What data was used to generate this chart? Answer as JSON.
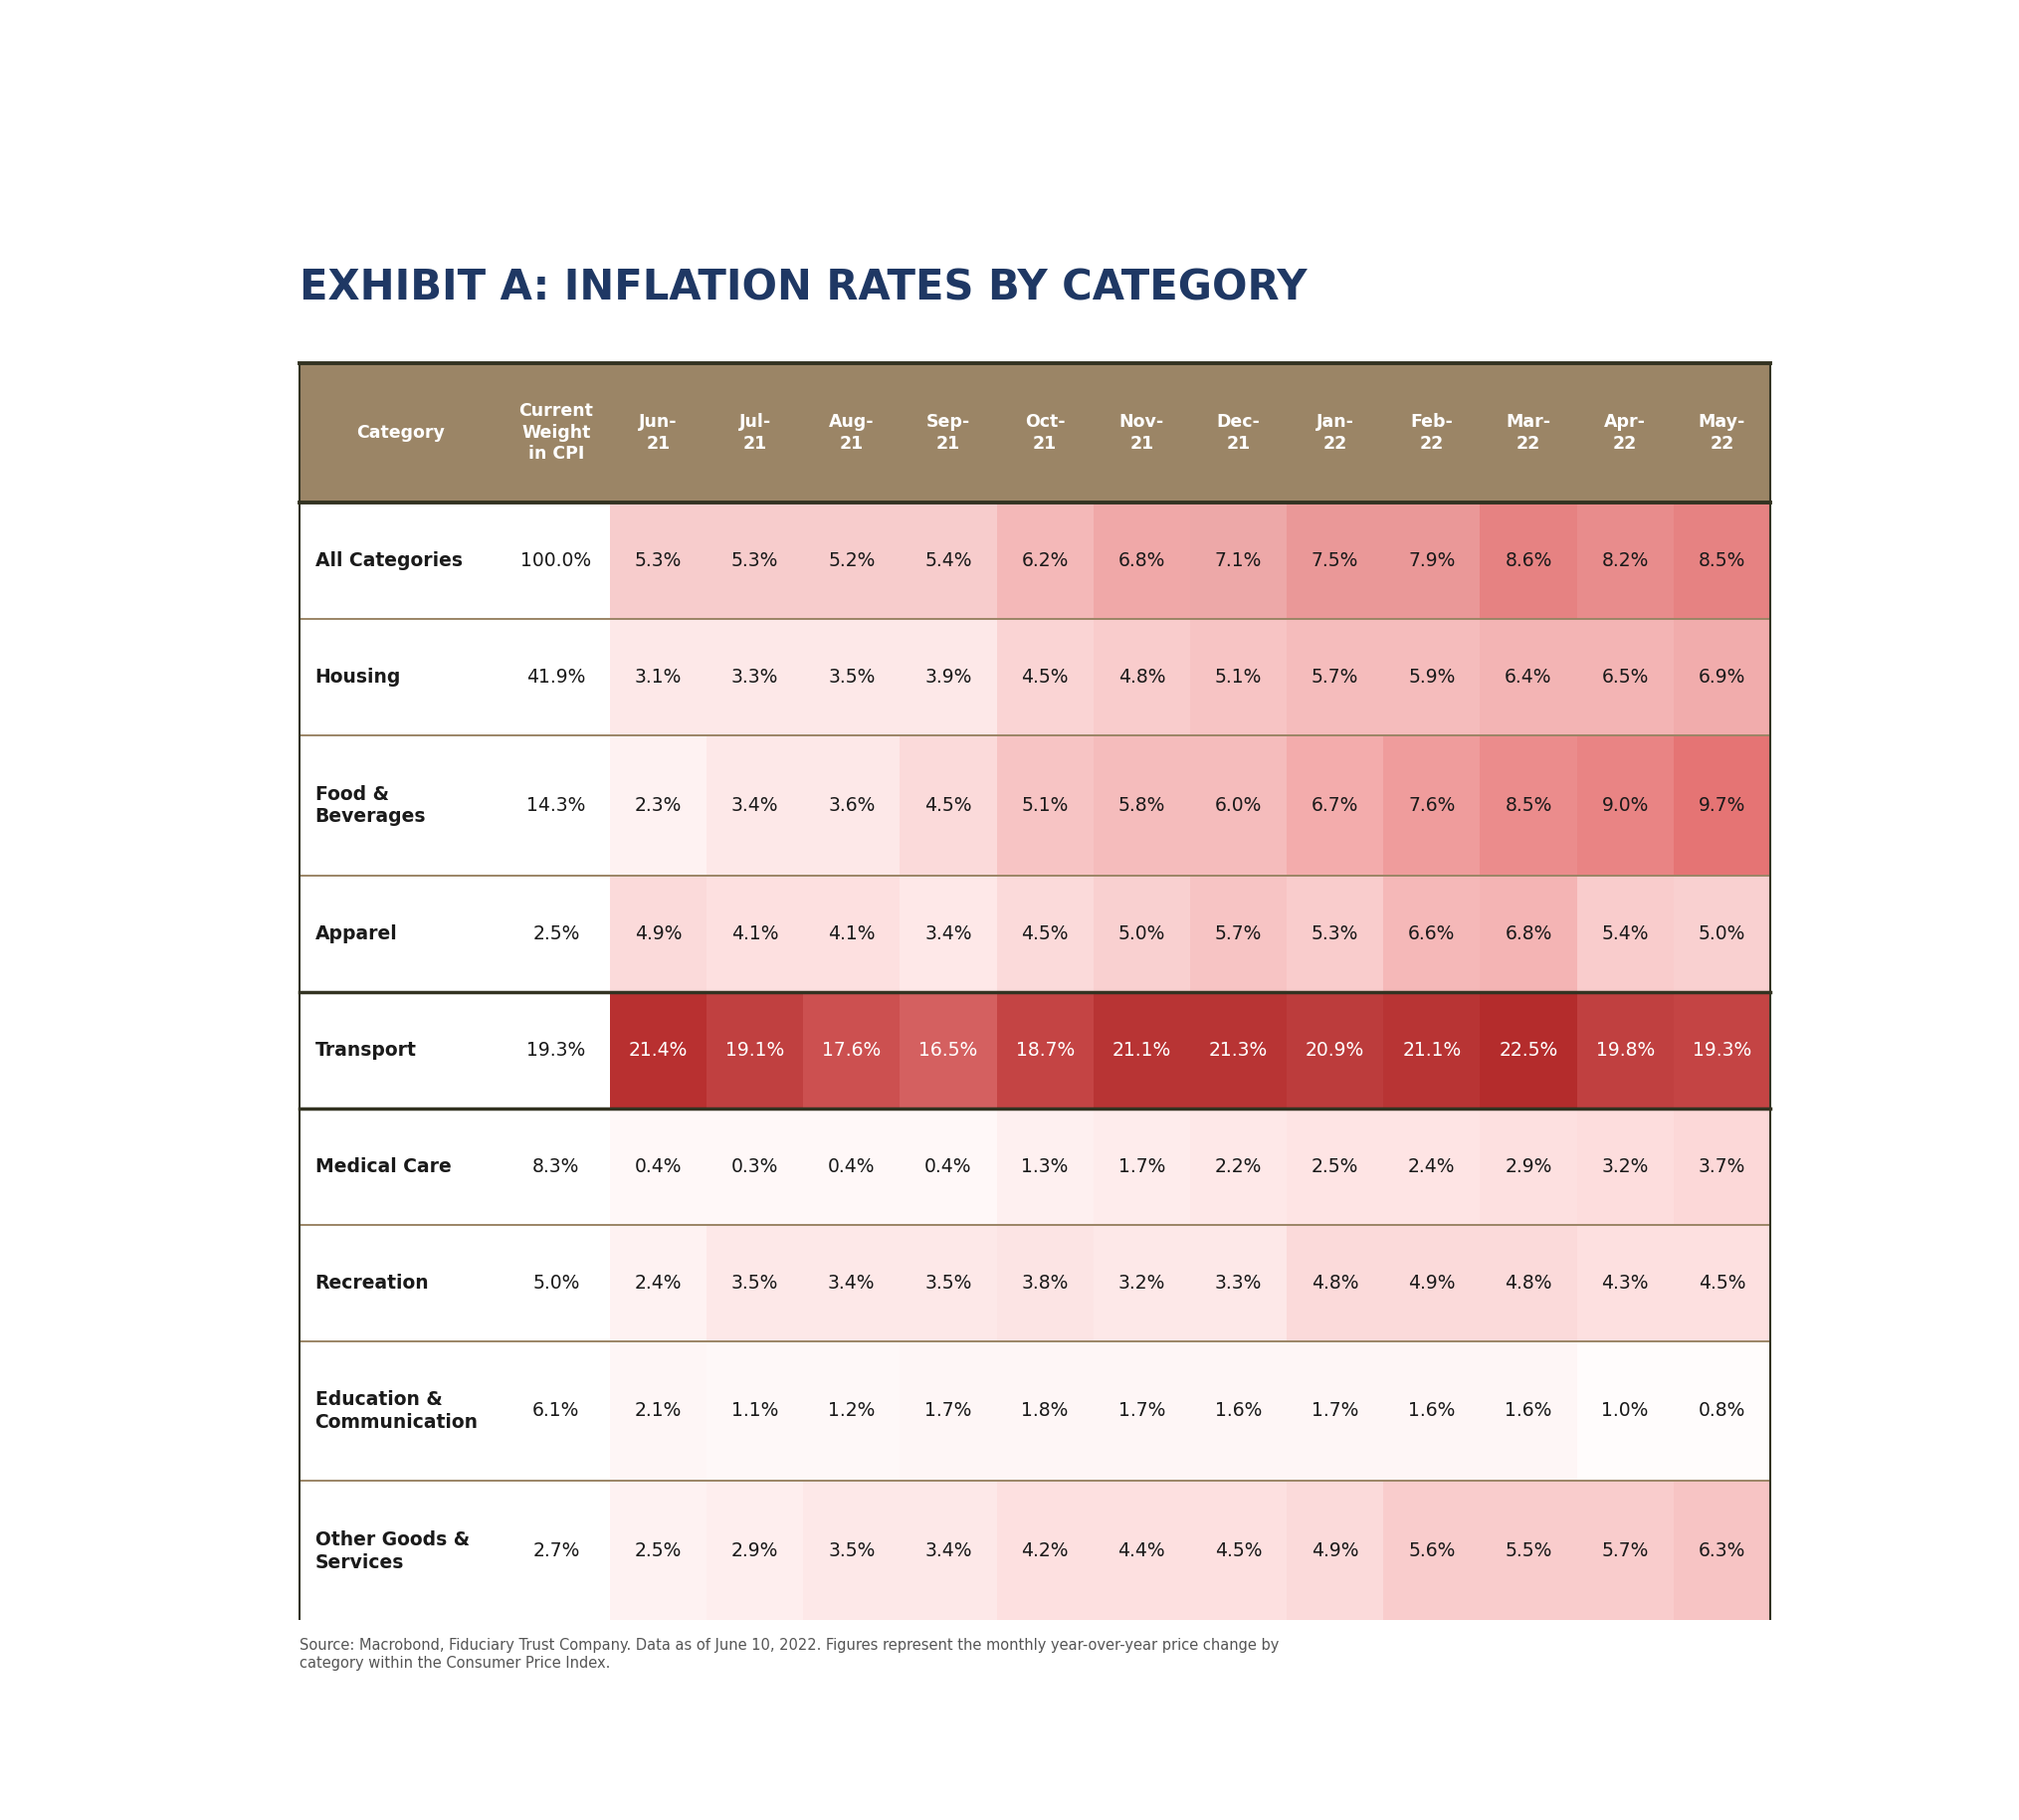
{
  "title": "EXHIBIT A: INFLATION RATES BY CATEGORY",
  "title_color": "#1f3864",
  "header_bg_color": "#9b8566",
  "header_text_color": "#ffffff",
  "source_text": "Source: Macrobond, Fiduciary Trust Company. Data as of June 10, 2022. Figures represent the monthly year-over-year price change by\ncategory within the Consumer Price Index.",
  "col_headers": [
    "Category",
    "Current\nWeight\nin CPI",
    "Jun-\n21",
    "Jul-\n21",
    "Aug-\n21",
    "Sep-\n21",
    "Oct-\n21",
    "Nov-\n21",
    "Dec-\n21",
    "Jan-\n22",
    "Feb-\n22",
    "Mar-\n22",
    "Apr-\n22",
    "May-\n22"
  ],
  "rows": [
    {
      "category": "All Categories",
      "weight": "100.0%",
      "values": [
        "5.3%",
        "5.3%",
        "5.2%",
        "5.4%",
        "6.2%",
        "6.8%",
        "7.1%",
        "7.5%",
        "7.9%",
        "8.6%",
        "8.2%",
        "8.5%"
      ],
      "bold": true,
      "cat_bg": "#ffffff",
      "cell_colors": [
        "#f7cccc",
        "#f7cccc",
        "#f7cccc",
        "#f7cccc",
        "#f4b8b8",
        "#f0a8a8",
        "#eda8a8",
        "#ea9898",
        "#ea9898",
        "#e68282",
        "#e88c8c",
        "#e68282"
      ]
    },
    {
      "category": "Housing",
      "weight": "41.9%",
      "values": [
        "3.1%",
        "3.3%",
        "3.5%",
        "3.9%",
        "4.5%",
        "4.8%",
        "5.1%",
        "5.7%",
        "5.9%",
        "6.4%",
        "6.5%",
        "6.9%"
      ],
      "bold": true,
      "cat_bg": "#ffffff",
      "cell_colors": [
        "#fde8e8",
        "#fde8e8",
        "#fde8e8",
        "#fde8e8",
        "#fad4d4",
        "#f9cccc",
        "#f7c4c4",
        "#f5bcbc",
        "#f5bcbc",
        "#f3b4b4",
        "#f3b4b4",
        "#f1acac"
      ]
    },
    {
      "category": "Food &\nBeverages",
      "weight": "14.3%",
      "values": [
        "2.3%",
        "3.4%",
        "3.6%",
        "4.5%",
        "5.1%",
        "5.8%",
        "6.0%",
        "6.7%",
        "7.6%",
        "8.5%",
        "9.0%",
        "9.7%"
      ],
      "bold": true,
      "cat_bg": "#ffffff",
      "cell_colors": [
        "#fef2f2",
        "#fde8e8",
        "#fde8e8",
        "#fbdada",
        "#f7c4c4",
        "#f5bcbc",
        "#f5bcbc",
        "#f3acac",
        "#ef9c9c",
        "#eb8c8c",
        "#e98484",
        "#e57474"
      ]
    },
    {
      "category": "Apparel",
      "weight": "2.5%",
      "values": [
        "4.9%",
        "4.1%",
        "4.1%",
        "3.4%",
        "4.5%",
        "5.0%",
        "5.7%",
        "5.3%",
        "6.6%",
        "6.8%",
        "5.4%",
        "5.0%"
      ],
      "bold": true,
      "cat_bg": "#ffffff",
      "cell_colors": [
        "#fbdada",
        "#fde0e0",
        "#fde0e0",
        "#fee8e8",
        "#fbdada",
        "#f9d0d0",
        "#f7c4c4",
        "#f9cccc",
        "#f5b8b8",
        "#f4b4b4",
        "#f9cccc",
        "#f9d0d0"
      ]
    },
    {
      "category": "Transport",
      "weight": "19.3%",
      "values": [
        "21.4%",
        "19.1%",
        "17.6%",
        "16.5%",
        "18.7%",
        "21.1%",
        "21.3%",
        "20.9%",
        "21.1%",
        "22.5%",
        "19.8%",
        "19.3%"
      ],
      "bold": true,
      "cat_bg": "#ffffff",
      "cell_colors": [
        "#b83030",
        "#c04040",
        "#cc5050",
        "#d46060",
        "#c44444",
        "#b83434",
        "#b83434",
        "#bc3c3c",
        "#b83434",
        "#b42c2c",
        "#c04040",
        "#c44444"
      ]
    },
    {
      "category": "Medical Care",
      "weight": "8.3%",
      "values": [
        "0.4%",
        "0.3%",
        "0.4%",
        "0.4%",
        "1.3%",
        "1.7%",
        "2.2%",
        "2.5%",
        "2.4%",
        "2.9%",
        "3.2%",
        "3.7%"
      ],
      "bold": true,
      "cat_bg": "#ffffff",
      "cell_colors": [
        "#fff8f8",
        "#fff8f8",
        "#fff8f8",
        "#fff8f8",
        "#fef0f0",
        "#feecec",
        "#fee8e8",
        "#fee4e4",
        "#fee4e4",
        "#fde0e0",
        "#fddddd",
        "#fcd8d8"
      ]
    },
    {
      "category": "Recreation",
      "weight": "5.0%",
      "values": [
        "2.4%",
        "3.5%",
        "3.4%",
        "3.5%",
        "3.8%",
        "3.2%",
        "3.3%",
        "4.8%",
        "4.9%",
        "4.8%",
        "4.3%",
        "4.5%"
      ],
      "bold": true,
      "cat_bg": "#ffffff",
      "cell_colors": [
        "#fef2f2",
        "#fde8e8",
        "#fde8e8",
        "#fde8e8",
        "#fce4e4",
        "#fde8e8",
        "#fde8e8",
        "#fbdada",
        "#fbdada",
        "#fbdada",
        "#fde0e0",
        "#fde0e0"
      ]
    },
    {
      "category": "Education &\nCommunication",
      "weight": "6.1%",
      "values": [
        "2.1%",
        "1.1%",
        "1.2%",
        "1.7%",
        "1.8%",
        "1.7%",
        "1.6%",
        "1.7%",
        "1.6%",
        "1.6%",
        "1.0%",
        "0.8%"
      ],
      "bold": true,
      "cat_bg": "#ffffff",
      "cell_colors": [
        "#fef6f6",
        "#fef8f8",
        "#fef8f8",
        "#fef6f6",
        "#fef6f6",
        "#fef6f6",
        "#fef6f6",
        "#fef6f6",
        "#fef6f6",
        "#fef6f6",
        "#fffcfc",
        "#fffcfc"
      ]
    },
    {
      "category": "Other Goods &\nServices",
      "weight": "2.7%",
      "values": [
        "2.5%",
        "2.9%",
        "3.5%",
        "3.4%",
        "4.2%",
        "4.4%",
        "4.5%",
        "4.9%",
        "5.6%",
        "5.5%",
        "5.7%",
        "6.3%"
      ],
      "bold": true,
      "cat_bg": "#ffffff",
      "cell_colors": [
        "#fef2f2",
        "#feeeee",
        "#fde8e8",
        "#fde8e8",
        "#fde0e0",
        "#fde0e0",
        "#fde0e0",
        "#fbdada",
        "#f9cccc",
        "#f9cccc",
        "#f9cccc",
        "#f7c4c4"
      ]
    }
  ],
  "bg_color": "#ffffff",
  "table_border_color": "#555544",
  "row_divider_color": "#9b8566",
  "transport_thick_border": true
}
